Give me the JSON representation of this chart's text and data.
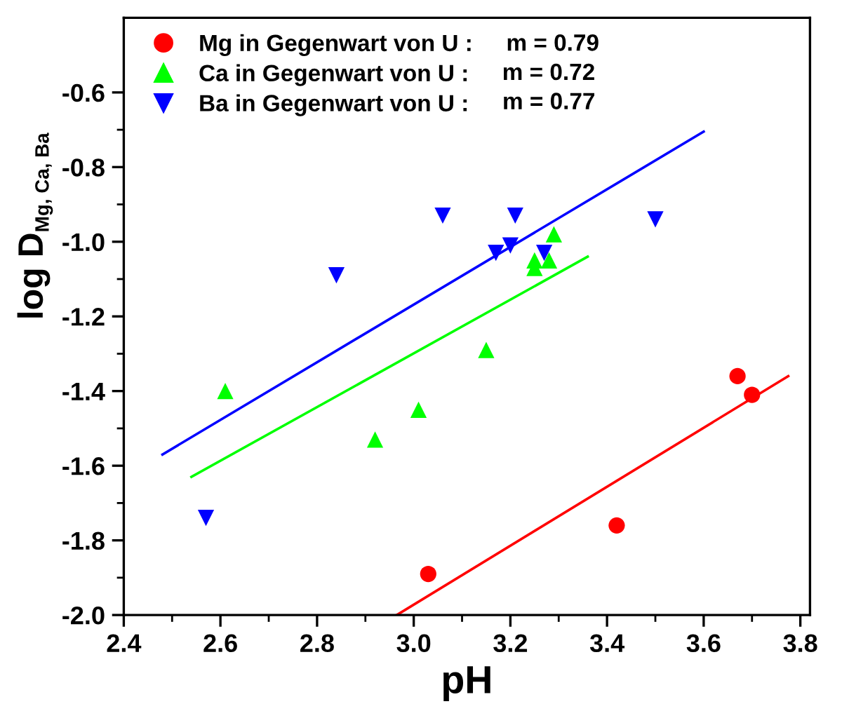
{
  "chart_data": {
    "type": "scatter",
    "xlabel": "pH",
    "ylabel": "log D$_{Mg, Ca, Ba}$",
    "xlim": [
      2.4,
      3.82
    ],
    "ylim": [
      -2.0,
      -0.4
    ],
    "xticks": [
      2.4,
      2.6,
      2.8,
      {
        "value": 3.0,
        "label": "3.0"
      },
      3.2,
      3.4,
      3.6,
      3.8
    ],
    "yticks": [
      {
        "value": -2.0,
        "label": "-2.0"
      },
      {
        "value": -1.8,
        "label": "-1.8"
      },
      {
        "value": -1.6,
        "label": "-1.6"
      },
      {
        "value": -1.4,
        "label": "-1.4"
      },
      {
        "value": -1.2,
        "label": "-1.2"
      },
      {
        "value": -1.0,
        "label": "-1.0"
      },
      {
        "value": -0.8,
        "label": "-0.8"
      },
      {
        "value": -0.6,
        "label": "-0.6"
      }
    ],
    "grid": false,
    "legend": "top left",
    "annotations": [
      "m = 0.79",
      "m = 0.72",
      "m = 0.77"
    ],
    "series": [
      {
        "name": "Mg in Gegenwart von U :",
        "color": "#ff0000",
        "marker": "circle",
        "x": [
          3.03,
          3.42,
          3.67,
          3.7
        ],
        "values": [
          -1.89,
          -1.76,
          -1.36,
          -1.41
        ]
      },
      {
        "name": "Ca in Gegenwart von U :",
        "color": "#00ff00",
        "marker": "triangle",
        "x": [
          2.61,
          2.92,
          3.01,
          3.15,
          3.25,
          3.25,
          3.28,
          3.29
        ],
        "values": [
          -1.4,
          -1.53,
          -1.45,
          -1.29,
          -1.05,
          -1.07,
          -1.05,
          -0.98
        ]
      },
      {
        "name": "Ba in Gegenwart von U :",
        "color": "#0000ff",
        "marker": "triangle_down",
        "x": [
          2.57,
          2.84,
          3.06,
          3.17,
          3.2,
          3.21,
          3.27,
          3.5
        ],
        "values": [
          -1.74,
          -1.09,
          -0.93,
          -1.03,
          -1.01,
          -0.93,
          -1.03,
          -0.94
        ]
      },
      {
        "type": "line",
        "color": "#ff0000",
        "x": [
          2.965,
          3.775
        ],
        "values": [
          -2.0,
          -1.36
        ]
      },
      {
        "type": "line",
        "color": "#00ff00",
        "x": [
          2.54,
          3.36
        ],
        "values": [
          -1.63,
          -1.04
        ]
      },
      {
        "type": "line",
        "color": "#0000ff",
        "x": [
          2.48,
          3.6
        ],
        "values": [
          -1.57,
          -0.705
        ]
      }
    ]
  }
}
